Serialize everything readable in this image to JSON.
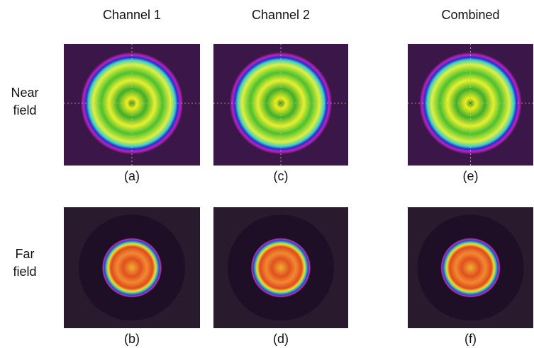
{
  "columns": [
    "Channel 1",
    "Channel 2",
    "Combined"
  ],
  "rows": [
    {
      "label_lines": [
        "Near",
        "field"
      ],
      "panels": [
        "(a)",
        "(c)",
        "(e)"
      ]
    },
    {
      "label_lines": [
        "Far",
        "field"
      ],
      "panels": [
        "(b)",
        "(d)",
        "(f)"
      ]
    }
  ]
}
